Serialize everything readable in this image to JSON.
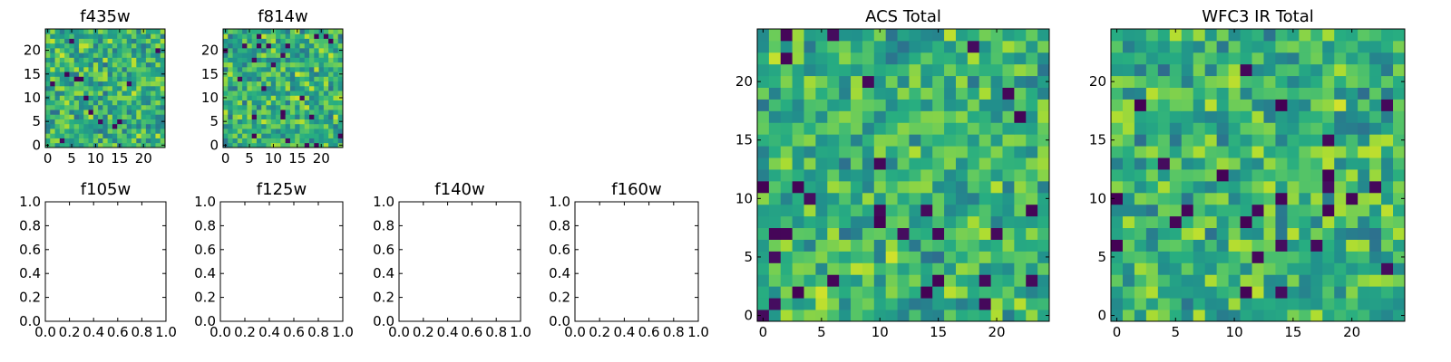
{
  "chart_data": [
    {
      "type": "heatmap",
      "title": "f435w",
      "x_ticks": [
        "0",
        "5",
        "10",
        "15",
        "20"
      ],
      "y_ticks": [
        "0",
        "5",
        "10",
        "15",
        "20"
      ],
      "grid_size": 25,
      "colormap": "viridis",
      "xlim": [
        -0.5,
        24.5
      ],
      "ylim": [
        -0.5,
        24.5
      ],
      "grid": false,
      "seed": 11
    },
    {
      "type": "heatmap",
      "title": "f814w",
      "x_ticks": [
        "0",
        "5",
        "10",
        "15",
        "20"
      ],
      "y_ticks": [
        "0",
        "5",
        "10",
        "15",
        "20"
      ],
      "grid_size": 25,
      "colormap": "viridis",
      "xlim": [
        -0.5,
        24.5
      ],
      "ylim": [
        -0.5,
        24.5
      ],
      "grid": false,
      "seed": 23
    },
    {
      "type": "empty",
      "title": "f105w",
      "x_ticks": [
        "0.0",
        "0.2",
        "0.4",
        "0.6",
        "0.8",
        "1.0"
      ],
      "y_ticks": [
        "0.0",
        "0.2",
        "0.4",
        "0.6",
        "0.8",
        "1.0"
      ],
      "xlim": [
        0,
        1
      ],
      "ylim": [
        0,
        1
      ]
    },
    {
      "type": "empty",
      "title": "f125w",
      "x_ticks": [
        "0.0",
        "0.2",
        "0.4",
        "0.6",
        "0.8",
        "1.0"
      ],
      "y_ticks": [
        "0.0",
        "0.2",
        "0.4",
        "0.6",
        "0.8",
        "1.0"
      ],
      "xlim": [
        0,
        1
      ],
      "ylim": [
        0,
        1
      ]
    },
    {
      "type": "empty",
      "title": "f140w",
      "x_ticks": [
        "0.0",
        "0.2",
        "0.4",
        "0.6",
        "0.8",
        "1.0"
      ],
      "y_ticks": [
        "0.0",
        "0.2",
        "0.4",
        "0.6",
        "0.8",
        "1.0"
      ],
      "xlim": [
        0,
        1
      ],
      "ylim": [
        0,
        1
      ]
    },
    {
      "type": "empty",
      "title": "f160w",
      "x_ticks": [
        "0.0",
        "0.2",
        "0.4",
        "0.6",
        "0.8",
        "1.0"
      ],
      "y_ticks": [
        "0.0",
        "0.2",
        "0.4",
        "0.6",
        "0.8",
        "1.0"
      ],
      "xlim": [
        0,
        1
      ],
      "ylim": [
        0,
        1
      ]
    },
    {
      "type": "heatmap",
      "title": "ACS Total",
      "x_ticks": [
        "0",
        "5",
        "10",
        "15",
        "20"
      ],
      "y_ticks": [
        "0",
        "5",
        "10",
        "15",
        "20"
      ],
      "grid_size": 25,
      "colormap": "viridis",
      "xlim": [
        -0.5,
        24.5
      ],
      "ylim": [
        -0.5,
        24.5
      ],
      "grid": false,
      "seed": 37
    },
    {
      "type": "heatmap",
      "title": "WFC3 IR Total",
      "x_ticks": [
        "0",
        "5",
        "10",
        "15",
        "20"
      ],
      "y_ticks": [
        "0",
        "5",
        "10",
        "15",
        "20"
      ],
      "grid_size": 25,
      "colormap": "viridis",
      "xlim": [
        -0.5,
        24.5
      ],
      "ylim": [
        -0.5,
        24.5
      ],
      "grid": false,
      "seed": 53
    }
  ],
  "colors": {
    "viridis_low": "#440154",
    "viridis_mid": "#21918c",
    "viridis_high": "#fde725"
  }
}
